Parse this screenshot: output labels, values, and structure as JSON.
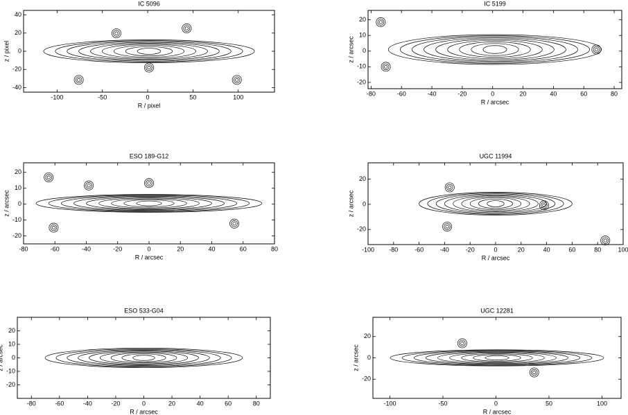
{
  "chart_data": [
    {
      "type": "contour",
      "title": "IC 5096",
      "xlabel": "R  /  pixel",
      "ylabel": "z  /  pixel",
      "xlim": [
        -137,
        140
      ],
      "ylim": [
        -45,
        45
      ],
      "xticks": [
        -100,
        -50,
        0,
        50,
        100
      ],
      "yticks": [
        -40,
        -20,
        0,
        20,
        40
      ]
    },
    {
      "type": "contour",
      "title": "IC 5199",
      "xlabel": "R  /  arcsec",
      "ylabel": "z  /  arcsec",
      "xlim": [
        -82,
        85
      ],
      "ylim": [
        -24,
        26
      ],
      "xticks": [
        -80,
        -60,
        -40,
        -20,
        0,
        20,
        40,
        60,
        80
      ],
      "yticks": [
        -20,
        -10,
        0,
        10,
        20
      ]
    },
    {
      "type": "contour",
      "title": "ESO 189-G12",
      "xlabel": "R  /  arcsec",
      "ylabel": "z  /  arcsec",
      "xlim": [
        -80,
        80
      ],
      "ylim": [
        -25,
        26
      ],
      "xticks": [
        -80,
        -60,
        -40,
        -20,
        0,
        20,
        40,
        60,
        80
      ],
      "yticks": [
        -20,
        -10,
        0,
        10,
        20
      ]
    },
    {
      "type": "contour",
      "title": "UGC 11994",
      "xlabel": "R  /  arcsec",
      "ylabel": "z  /  arcsec",
      "xlim": [
        -100,
        100
      ],
      "ylim": [
        -32,
        33
      ],
      "xticks": [
        -100,
        -80,
        -60,
        -40,
        -20,
        0,
        20,
        40,
        60,
        80,
        100
      ],
      "yticks": [
        -20,
        0,
        20
      ]
    },
    {
      "type": "contour",
      "title": "ESO 533-G04",
      "xlabel": "R  /  arcsec",
      "ylabel": "z  /  arcsec",
      "xlim": [
        -90,
        90
      ],
      "ylim": [
        -30,
        30
      ],
      "xticks": [
        -80,
        -60,
        -40,
        -20,
        0,
        20,
        40,
        60,
        80
      ],
      "yticks": [
        -20,
        -10,
        0,
        10,
        20
      ]
    },
    {
      "type": "contour",
      "title": "UGC 12281",
      "xlabel": "R  /  arcsec",
      "ylabel": "z  /  arcsec",
      "xlim": [
        -116,
        118
      ],
      "ylim": [
        -38,
        38
      ],
      "xticks": [
        -100,
        -50,
        0,
        50,
        100
      ],
      "yticks": [
        -20,
        0,
        20
      ]
    }
  ]
}
